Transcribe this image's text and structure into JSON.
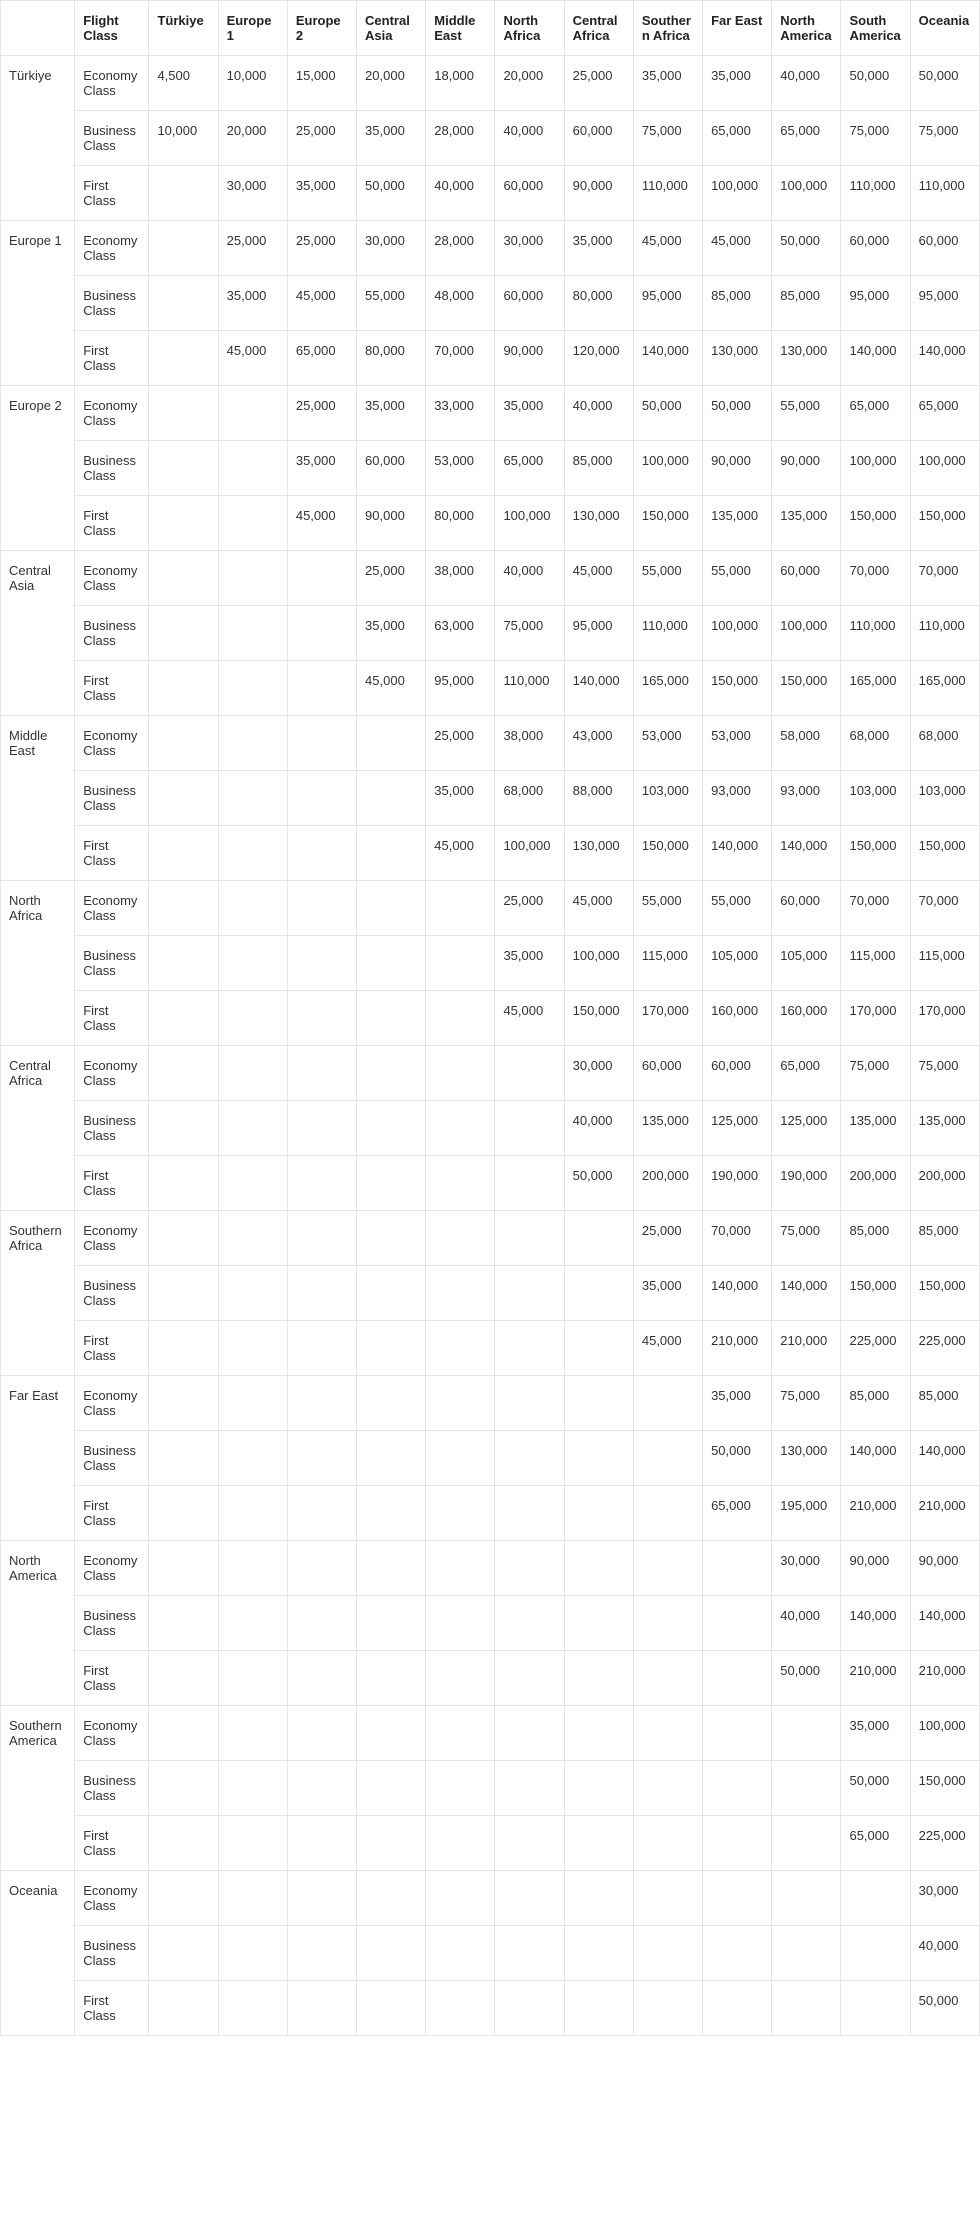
{
  "table": {
    "headers": [
      "",
      "Flight Class",
      "Türkiye",
      "Europe 1",
      "Europe 2",
      "Central Asia",
      "Middle East",
      "North Africa",
      "Central Africa",
      "Southern Africa",
      "Far East",
      "North America",
      "South America",
      "Oceania"
    ],
    "regions": [
      {
        "name": "Türkiye",
        "rows": [
          {
            "class": "Economy Class",
            "values": [
              "4,500",
              "10,000",
              "15,000",
              "20,000",
              "18,000",
              "20,000",
              "25,000",
              "35,000",
              "35,000",
              "40,000",
              "50,000",
              "50,000"
            ]
          },
          {
            "class": "Business Class",
            "values": [
              "10,000",
              "20,000",
              "25,000",
              "35,000",
              "28,000",
              "40,000",
              "60,000",
              "75,000",
              "65,000",
              "65,000",
              "75,000",
              "75,000"
            ]
          },
          {
            "class": "First Class",
            "values": [
              "",
              "30,000",
              "35,000",
              "50,000",
              "40,000",
              "60,000",
              "90,000",
              "110,000",
              "100,000",
              "100,000",
              "110,000",
              "110,000"
            ]
          }
        ]
      },
      {
        "name": "Europe 1",
        "rows": [
          {
            "class": "Economy Class",
            "values": [
              "",
              "25,000",
              "25,000",
              "30,000",
              "28,000",
              "30,000",
              "35,000",
              "45,000",
              "45,000",
              "50,000",
              "60,000",
              "60,000"
            ]
          },
          {
            "class": "Business Class",
            "values": [
              "",
              "35,000",
              "45,000",
              "55,000",
              "48,000",
              "60,000",
              "80,000",
              "95,000",
              "85,000",
              "85,000",
              "95,000",
              "95,000"
            ]
          },
          {
            "class": "First Class",
            "values": [
              "",
              "45,000",
              "65,000",
              "80,000",
              "70,000",
              "90,000",
              "120,000",
              "140,000",
              "130,000",
              "130,000",
              "140,000",
              "140,000"
            ]
          }
        ]
      },
      {
        "name": "Europe 2",
        "rows": [
          {
            "class": "Economy Class",
            "values": [
              "",
              "",
              "25,000",
              "35,000",
              "33,000",
              "35,000",
              "40,000",
              "50,000",
              "50,000",
              "55,000",
              "65,000",
              "65,000"
            ]
          },
          {
            "class": "Business Class",
            "values": [
              "",
              "",
              "35,000",
              "60,000",
              "53,000",
              "65,000",
              "85,000",
              "100,000",
              "90,000",
              "90,000",
              "100,000",
              "100,000"
            ]
          },
          {
            "class": "First Class",
            "values": [
              "",
              "",
              "45,000",
              "90,000",
              "80,000",
              "100,000",
              "130,000",
              "150,000",
              "135,000",
              "135,000",
              "150,000",
              "150,000"
            ]
          }
        ]
      },
      {
        "name": "Central Asia",
        "rows": [
          {
            "class": "Economy Class",
            "values": [
              "",
              "",
              "",
              "25,000",
              "38,000",
              "40,000",
              "45,000",
              "55,000",
              "55,000",
              "60,000",
              "70,000",
              "70,000"
            ]
          },
          {
            "class": "Business Class",
            "values": [
              "",
              "",
              "",
              "35,000",
              "63,000",
              "75,000",
              "95,000",
              "110,000",
              "100,000",
              "100,000",
              "110,000",
              "110,000"
            ]
          },
          {
            "class": "First Class",
            "values": [
              "",
              "",
              "",
              "45,000",
              "95,000",
              "110,000",
              "140,000",
              "165,000",
              "150,000",
              "150,000",
              "165,000",
              "165,000"
            ]
          }
        ]
      },
      {
        "name": "Middle East",
        "rows": [
          {
            "class": "Economy Class",
            "values": [
              "",
              "",
              "",
              "",
              "25,000",
              "38,000",
              "43,000",
              "53,000",
              "53,000",
              "58,000",
              "68,000",
              "68,000"
            ]
          },
          {
            "class": "Business Class",
            "values": [
              "",
              "",
              "",
              "",
              "35,000",
              "68,000",
              "88,000",
              "103,000",
              "93,000",
              "93,000",
              "103,000",
              "103,000"
            ]
          },
          {
            "class": "First Class",
            "values": [
              "",
              "",
              "",
              "",
              "45,000",
              "100,000",
              "130,000",
              "150,000",
              "140,000",
              "140,000",
              "150,000",
              "150,000"
            ]
          }
        ]
      },
      {
        "name": "North Africa",
        "rows": [
          {
            "class": "Economy Class",
            "values": [
              "",
              "",
              "",
              "",
              "",
              "25,000",
              "45,000",
              "55,000",
              "55,000",
              "60,000",
              "70,000",
              "70,000"
            ]
          },
          {
            "class": "Business Class",
            "values": [
              "",
              "",
              "",
              "",
              "",
              "35,000",
              "100,000",
              "115,000",
              "105,000",
              "105,000",
              "115,000",
              "115,000"
            ]
          },
          {
            "class": "First Class",
            "values": [
              "",
              "",
              "",
              "",
              "",
              "45,000",
              "150,000",
              "170,000",
              "160,000",
              "160,000",
              "170,000",
              "170,000"
            ]
          }
        ]
      },
      {
        "name": "Central Africa",
        "rows": [
          {
            "class": "Economy Class",
            "values": [
              "",
              "",
              "",
              "",
              "",
              "",
              "30,000",
              "60,000",
              "60,000",
              "65,000",
              "75,000",
              "75,000"
            ]
          },
          {
            "class": "Business Class",
            "values": [
              "",
              "",
              "",
              "",
              "",
              "",
              "40,000",
              "135,000",
              "125,000",
              "125,000",
              "135,000",
              "135,000"
            ]
          },
          {
            "class": "First Class",
            "values": [
              "",
              "",
              "",
              "",
              "",
              "",
              "50,000",
              "200,000",
              "190,000",
              "190,000",
              "200,000",
              "200,000"
            ]
          }
        ]
      },
      {
        "name": "Southern Africa",
        "rows": [
          {
            "class": "Economy Class",
            "values": [
              "",
              "",
              "",
              "",
              "",
              "",
              "",
              "25,000",
              "70,000",
              "75,000",
              "85,000",
              "85,000"
            ]
          },
          {
            "class": "Business Class",
            "values": [
              "",
              "",
              "",
              "",
              "",
              "",
              "",
              "35,000",
              "140,000",
              "140,000",
              "150,000",
              "150,000"
            ]
          },
          {
            "class": "First Class",
            "values": [
              "",
              "",
              "",
              "",
              "",
              "",
              "",
              "45,000",
              "210,000",
              "210,000",
              "225,000",
              "225,000"
            ]
          }
        ]
      },
      {
        "name": "Far East",
        "rows": [
          {
            "class": "Economy Class",
            "values": [
              "",
              "",
              "",
              "",
              "",
              "",
              "",
              "",
              "35,000",
              "75,000",
              "85,000",
              "85,000"
            ]
          },
          {
            "class": "Business Class",
            "values": [
              "",
              "",
              "",
              "",
              "",
              "",
              "",
              "",
              "50,000",
              "130,000",
              "140,000",
              "140,000"
            ]
          },
          {
            "class": "First Class",
            "values": [
              "",
              "",
              "",
              "",
              "",
              "",
              "",
              "",
              "65,000",
              "195,000",
              "210,000",
              "210,000"
            ]
          }
        ]
      },
      {
        "name": "North America",
        "rows": [
          {
            "class": "Economy Class",
            "values": [
              "",
              "",
              "",
              "",
              "",
              "",
              "",
              "",
              "",
              "30,000",
              "90,000",
              "90,000"
            ]
          },
          {
            "class": "Business Class",
            "values": [
              "",
              "",
              "",
              "",
              "",
              "",
              "",
              "",
              "",
              "40,000",
              "140,000",
              "140,000"
            ]
          },
          {
            "class": "First Class",
            "values": [
              "",
              "",
              "",
              "",
              "",
              "",
              "",
              "",
              "",
              "50,000",
              "210,000",
              "210,000"
            ]
          }
        ]
      },
      {
        "name": "Southern America",
        "rows": [
          {
            "class": "Economy Class",
            "values": [
              "",
              "",
              "",
              "",
              "",
              "",
              "",
              "",
              "",
              "",
              "35,000",
              "100,000"
            ]
          },
          {
            "class": "Business Class",
            "values": [
              "",
              "",
              "",
              "",
              "",
              "",
              "",
              "",
              "",
              "",
              "50,000",
              "150,000"
            ]
          },
          {
            "class": "First Class",
            "values": [
              "",
              "",
              "",
              "",
              "",
              "",
              "",
              "",
              "",
              "",
              "65,000",
              "225,000"
            ]
          }
        ]
      },
      {
        "name": "Oceania",
        "rows": [
          {
            "class": "Economy Class",
            "values": [
              "",
              "",
              "",
              "",
              "",
              "",
              "",
              "",
              "",
              "",
              "",
              "30,000"
            ]
          },
          {
            "class": "Business Class",
            "values": [
              "",
              "",
              "",
              "",
              "",
              "",
              "",
              "",
              "",
              "",
              "",
              "40,000"
            ]
          },
          {
            "class": "First Class",
            "values": [
              "",
              "",
              "",
              "",
              "",
              "",
              "",
              "",
              "",
              "",
              "",
              "50,000"
            ]
          }
        ]
      }
    ]
  },
  "style": {
    "border_color": "#e5e5e5",
    "font_size": 13,
    "header_font_weight": 700,
    "text_color": "#333333"
  }
}
